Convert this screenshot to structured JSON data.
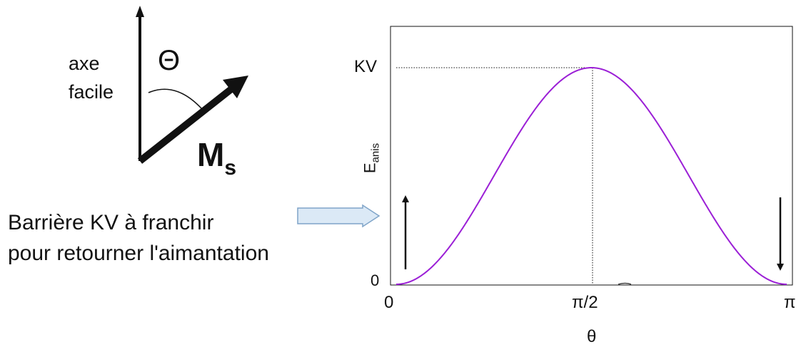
{
  "diagram": {
    "easy_axis_label_line1": "axe",
    "easy_axis_label_line2": "facile",
    "angle_symbol": "Θ",
    "magnetization_symbol": "M",
    "magnetization_subscript": "s"
  },
  "caption": {
    "line1": "Barrière KV à franchir",
    "line2": "pour retourner l'aimantation"
  },
  "chart_data": {
    "type": "line",
    "title": "",
    "xlabel": "θ",
    "ylabel_main": "E",
    "ylabel_sub": "anis",
    "x_ticks": [
      "0",
      "π/2",
      "π"
    ],
    "y_ticks": [
      "0",
      "KV"
    ],
    "curve": "E = KV·sin²θ",
    "x_range": [
      0,
      3.14159
    ],
    "y_range": [
      0,
      1
    ],
    "peak": {
      "x": "π/2",
      "y": "KV"
    },
    "color": "#9b1fd6",
    "arrows": [
      "up at θ=0",
      "down at θ=π"
    ]
  },
  "colors": {
    "curve": "#9b1fd6",
    "pointer_fill": "#dbe9f6",
    "pointer_stroke": "#7fa4c8"
  }
}
